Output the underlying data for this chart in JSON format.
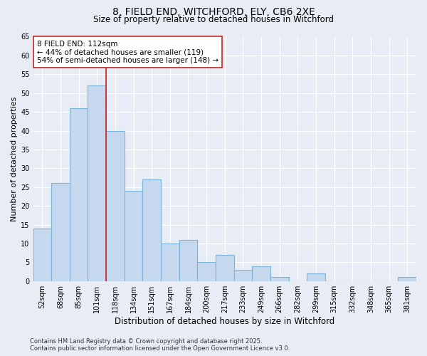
{
  "title1": "8, FIELD END, WITCHFORD, ELY, CB6 2XE",
  "title2": "Size of property relative to detached houses in Witchford",
  "xlabel": "Distribution of detached houses by size in Witchford",
  "ylabel": "Number of detached properties",
  "categories": [
    "52sqm",
    "68sqm",
    "85sqm",
    "101sqm",
    "118sqm",
    "134sqm",
    "151sqm",
    "167sqm",
    "184sqm",
    "200sqm",
    "217sqm",
    "233sqm",
    "249sqm",
    "266sqm",
    "282sqm",
    "299sqm",
    "315sqm",
    "332sqm",
    "348sqm",
    "365sqm",
    "381sqm"
  ],
  "values": [
    14,
    26,
    46,
    52,
    40,
    24,
    27,
    10,
    11,
    5,
    7,
    3,
    4,
    1,
    0,
    2,
    0,
    0,
    0,
    0,
    1
  ],
  "bar_color": "#c5d8ed",
  "bar_edge_color": "#7ab4d8",
  "red_line_color": "#cc2222",
  "annotation_box_color": "#ffffff",
  "annotation_box_edge": "#cc2222",
  "ylim": [
    0,
    65
  ],
  "yticks": [
    0,
    5,
    10,
    15,
    20,
    25,
    30,
    35,
    40,
    45,
    50,
    55,
    60,
    65
  ],
  "background_color": "#e8edf5",
  "grid_color": "#ffffff",
  "footer1": "Contains HM Land Registry data © Crown copyright and database right 2025.",
  "footer2": "Contains public sector information licensed under the Open Government Licence v3.0.",
  "title_fontsize": 10,
  "subtitle_fontsize": 8.5,
  "axis_label_fontsize": 8,
  "tick_fontsize": 7,
  "annotation_fontsize": 7.5,
  "footer_fontsize": 6,
  "highlight_line1": "8 FIELD END: 112sqm",
  "highlight_line2": "← 44% of detached houses are smaller (119)",
  "highlight_line3": "54% of semi-detached houses are larger (148) →",
  "red_line_xindex": 4
}
